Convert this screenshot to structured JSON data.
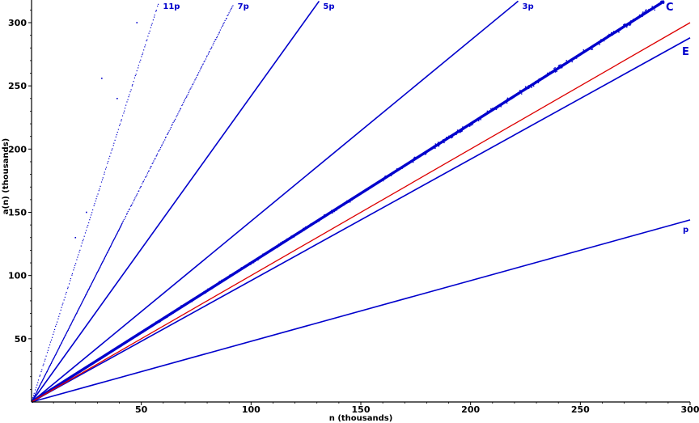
{
  "chart_data": {
    "type": "scatter",
    "xlabel": "n (thousands)",
    "ylabel": "a(n) (thousands)",
    "xlim": [
      0,
      300
    ],
    "ylim": [
      0,
      317
    ],
    "x_ticks": [
      50,
      100,
      150,
      200,
      250,
      300
    ],
    "y_ticks": [
      50,
      100,
      150,
      200,
      250,
      300
    ],
    "grid": false,
    "colors": {
      "points": "#0000cc",
      "reference_line": "#dd0000",
      "axes": "#000000"
    },
    "series": [
      {
        "name": "11p",
        "slope": 5.45,
        "x_end": 58,
        "density": "sparse"
      },
      {
        "name": "7p",
        "slope": 3.42,
        "x_end": 92,
        "density": "dense"
      },
      {
        "name": "5p",
        "slope": 2.42,
        "x_end": 131,
        "density": "line"
      },
      {
        "name": "3p",
        "slope": 1.43,
        "x_end": 222,
        "density": "line"
      },
      {
        "name": "C",
        "slope": 1.1,
        "x_end": 289,
        "density": "thick"
      },
      {
        "name": "E",
        "slope": 0.96,
        "x_end": 300,
        "density": "line"
      },
      {
        "name": "p",
        "slope": 0.48,
        "x_end": 300,
        "density": "line"
      }
    ],
    "reference_line": {
      "slope": 1.0,
      "x_end": 300
    },
    "outliers": [
      {
        "x": 48,
        "y": 300
      },
      {
        "x": 32,
        "y": 256
      },
      {
        "x": 39,
        "y": 240
      },
      {
        "x": 25,
        "y": 150
      },
      {
        "x": 20,
        "y": 130
      }
    ]
  }
}
